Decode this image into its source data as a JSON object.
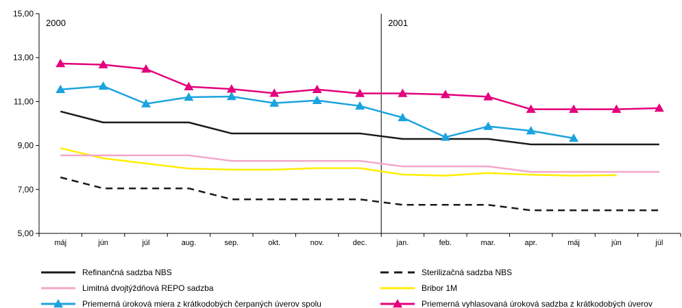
{
  "chart_data": {
    "type": "line",
    "categories": [
      "máj",
      "jún",
      "júl",
      "aug.",
      "sep.",
      "okt.",
      "nov.",
      "dec.",
      "jan.",
      "feb.",
      "mar.",
      "apr.",
      "máj",
      "jún",
      "júl"
    ],
    "ylim": [
      5,
      15
    ],
    "yticks": [
      "5,00",
      "7,00",
      "9,00",
      "11,00",
      "13,00",
      "15,00"
    ],
    "ytick_values": [
      5,
      7,
      9,
      11,
      13,
      15
    ],
    "year_labels": [
      {
        "label": "2000",
        "category_index": 0
      },
      {
        "label": "2001",
        "category_index": 8
      }
    ],
    "divider_between_categories": [
      7,
      8
    ],
    "grid": false,
    "legend_position": "bottom",
    "series": [
      {
        "name": "Refinančná sadzba NBS",
        "color": "#1a1a1a",
        "style": "solid",
        "marker": "none",
        "values": [
          10.55,
          10.05,
          10.05,
          10.05,
          9.55,
          9.55,
          9.55,
          9.55,
          9.3,
          9.3,
          9.3,
          9.05,
          9.05,
          9.05,
          9.05
        ]
      },
      {
        "name": "Sterilizačná sadzba NBS",
        "color": "#1a1a1a",
        "style": "dashed",
        "marker": "none",
        "values": [
          7.55,
          7.05,
          7.05,
          7.05,
          6.55,
          6.55,
          6.55,
          6.55,
          6.3,
          6.3,
          6.3,
          6.05,
          6.05,
          6.05,
          6.05
        ]
      },
      {
        "name": "Limitná dvojtýždňová REPO sadzba",
        "color": "#f4a6c8",
        "style": "solid",
        "marker": "none",
        "values": [
          8.55,
          8.55,
          8.55,
          8.55,
          8.3,
          8.3,
          8.3,
          8.3,
          8.05,
          8.05,
          8.05,
          7.8,
          7.8,
          7.8,
          7.8
        ]
      },
      {
        "name": "Bribor 1M",
        "color": "#ffed00",
        "style": "solid",
        "marker": "none",
        "values": [
          8.88,
          8.42,
          8.18,
          7.95,
          7.9,
          7.9,
          7.97,
          7.97,
          7.68,
          7.63,
          7.75,
          7.67,
          7.63,
          7.65,
          null
        ]
      },
      {
        "name": "Priemerná úroková miera z krátkodobých čerpaných úverov spolu",
        "color": "#1aa3de",
        "style": "solid",
        "marker": "triangle",
        "values": [
          11.55,
          11.7,
          10.9,
          11.2,
          11.23,
          10.93,
          11.05,
          10.8,
          10.27,
          9.38,
          9.87,
          9.67,
          9.33,
          null,
          null
        ]
      },
      {
        "name": "Priemerná vyhlasovaná úroková sadzba z krátkodobých úverov",
        "color": "#e4007c",
        "style": "solid",
        "marker": "triangle",
        "values": [
          12.73,
          12.68,
          12.48,
          11.68,
          11.57,
          11.38,
          11.55,
          11.37,
          11.37,
          11.32,
          11.22,
          10.65,
          10.65,
          10.65,
          10.7
        ]
      }
    ]
  }
}
